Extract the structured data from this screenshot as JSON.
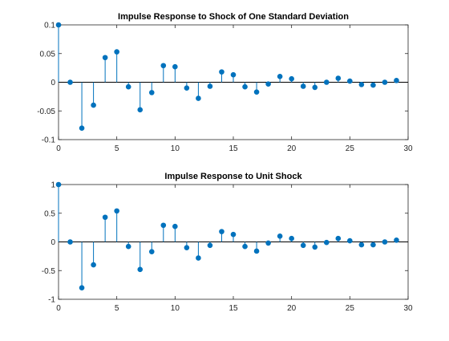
{
  "chart_data": [
    {
      "type": "stem",
      "title": "Impulse Response to Shock of One Standard Deviation",
      "xlabel": "",
      "ylabel": "",
      "xlim": [
        0,
        30
      ],
      "ylim": [
        -0.1,
        0.1
      ],
      "xticks": [
        0,
        5,
        10,
        15,
        20,
        25,
        30
      ],
      "xtick_labels": [
        "0",
        "5",
        "10",
        "15",
        "20",
        "25",
        "30"
      ],
      "yticks": [
        -0.1,
        -0.05,
        0,
        0.05,
        0.1
      ],
      "ytick_labels": [
        "-0.1",
        "-0.05",
        "0",
        "0.05",
        "0.1"
      ],
      "grid": false,
      "color": "#0072bd",
      "x": [
        0,
        1,
        2,
        3,
        4,
        5,
        6,
        7,
        8,
        9,
        10,
        11,
        12,
        13,
        14,
        15,
        16,
        17,
        18,
        19,
        20,
        21,
        22,
        23,
        24,
        25,
        26,
        27,
        28,
        29
      ],
      "y": [
        0.1,
        0.0,
        -0.08,
        -0.04,
        0.043,
        0.053,
        -0.008,
        -0.048,
        -0.018,
        0.029,
        0.027,
        -0.01,
        -0.028,
        -0.007,
        0.018,
        0.013,
        -0.008,
        -0.017,
        -0.003,
        0.01,
        0.006,
        -0.007,
        -0.009,
        0.0,
        0.007,
        0.002,
        -0.004,
        -0.005,
        0.0,
        0.003
      ]
    },
    {
      "type": "stem",
      "title": "Impulse Response to Unit Shock",
      "xlabel": "",
      "ylabel": "",
      "xlim": [
        0,
        30
      ],
      "ylim": [
        -1,
        1
      ],
      "xticks": [
        0,
        5,
        10,
        15,
        20,
        25,
        30
      ],
      "xtick_labels": [
        "0",
        "5",
        "10",
        "15",
        "20",
        "25",
        "30"
      ],
      "yticks": [
        -1,
        -0.5,
        0,
        0.5,
        1
      ],
      "ytick_labels": [
        "-1",
        "-0.5",
        "0",
        "0.5",
        "1"
      ],
      "grid": false,
      "color": "#0072bd",
      "x": [
        0,
        1,
        2,
        3,
        4,
        5,
        6,
        7,
        8,
        9,
        10,
        11,
        12,
        13,
        14,
        15,
        16,
        17,
        18,
        19,
        20,
        21,
        22,
        23,
        24,
        25,
        26,
        27,
        28,
        29
      ],
      "y": [
        1.0,
        0.0,
        -0.8,
        -0.4,
        0.43,
        0.54,
        -0.08,
        -0.48,
        -0.17,
        0.29,
        0.27,
        -0.1,
        -0.28,
        -0.06,
        0.18,
        0.13,
        -0.08,
        -0.16,
        -0.02,
        0.1,
        0.06,
        -0.06,
        -0.09,
        -0.01,
        0.06,
        0.02,
        -0.05,
        -0.05,
        0.0,
        0.03
      ]
    }
  ]
}
